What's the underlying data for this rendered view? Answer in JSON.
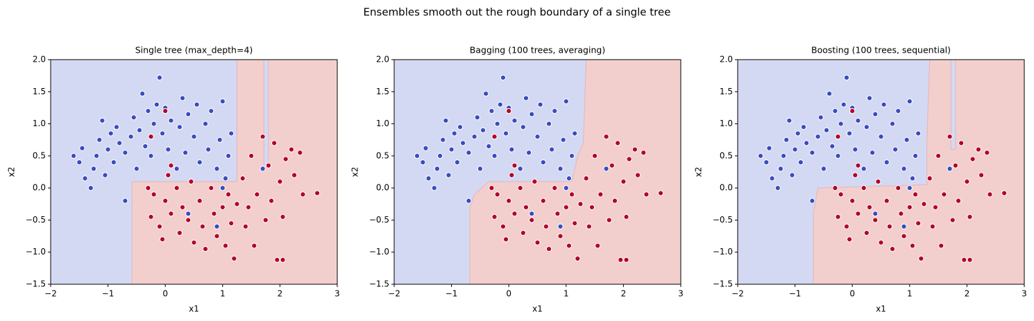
{
  "title": "Ensembles smooth out the rough boundary of a single tree",
  "chart_data": [
    {
      "type": "scatter",
      "title": "Single tree (max_depth=4)",
      "xlabel": "x1",
      "ylabel": "x2",
      "xlim": [
        -2,
        3
      ],
      "ylim": [
        -1.5,
        2.0
      ],
      "xticks": [
        {
          "value": -2,
          "label": "−2"
        },
        {
          "value": -1,
          "label": "−1"
        },
        0,
        1,
        2,
        3
      ],
      "yticks": [
        {
          "value": -1.5,
          "label": "−1.5"
        },
        {
          "value": -1.0,
          "label": "−1.0"
        },
        {
          "value": -0.5,
          "label": "−0.5"
        },
        {
          "value": 0.0,
          "label": "0.0"
        },
        {
          "value": 0.5,
          "label": "0.5"
        },
        {
          "value": 1.0,
          "label": "1.0"
        },
        {
          "value": 1.5,
          "label": "1.5"
        },
        {
          "value": 2.0,
          "label": "2.0"
        }
      ],
      "background": "#d4d9f3",
      "region": {
        "color": "#f2cfcd",
        "x": [
          -0.58,
          -0.58,
          1.25,
          1.25,
          1.72,
          1.72,
          1.8,
          1.8,
          3,
          3
        ],
        "y": [
          -1.5,
          0.1,
          0.1,
          2,
          2,
          0.32,
          0.32,
          2,
          2,
          -1.5
        ]
      },
      "series": [
        {
          "color": "#3a4cc0",
          "x": [
            -1.6,
            -1.5,
            -1.45,
            -1.4,
            -1.3,
            -1.25,
            -1.2,
            -1.15,
            -1.1,
            -1.05,
            -1.0,
            -0.95,
            -0.9,
            -0.85,
            -0.8,
            -0.7,
            -0.7,
            -0.6,
            -0.55,
            -0.5,
            -0.45,
            -0.4,
            -0.35,
            -0.3,
            -0.25,
            -0.2,
            -0.15,
            -0.1,
            -0.05,
            0.0,
            0.05,
            0.1,
            0.2,
            0.25,
            0.3,
            0.35,
            0.4,
            0.5,
            0.55,
            0.6,
            0.7,
            0.75,
            0.8,
            0.9,
            0.95,
            1.0,
            1.05,
            1.1,
            1.15,
            1.0,
            1.7,
            0.4,
            0.9
          ],
          "y": [
            0.5,
            0.4,
            0.62,
            0.15,
            0.0,
            0.3,
            0.5,
            0.75,
            1.05,
            0.2,
            0.6,
            0.85,
            0.4,
            0.95,
            0.7,
            -0.2,
            0.55,
            0.8,
            1.1,
            0.3,
            0.9,
            1.47,
            0.65,
            1.2,
            0.5,
            1.0,
            1.3,
            1.72,
            0.85,
            1.25,
            0.6,
            1.05,
            0.3,
            0.95,
            1.4,
            0.55,
            1.15,
            0.8,
            1.3,
            0.4,
            1.0,
            0.6,
            1.2,
            0.3,
            0.75,
            1.35,
            0.15,
            0.5,
            0.85,
            0.0,
            0.3,
            -0.4,
            -0.6
          ]
        },
        {
          "color": "#b40426",
          "x": [
            -0.3,
            -0.25,
            -0.2,
            -0.1,
            -0.05,
            0.0,
            0.05,
            0.1,
            0.2,
            0.25,
            0.3,
            0.4,
            0.45,
            0.5,
            0.6,
            0.65,
            0.7,
            0.8,
            0.85,
            0.9,
            1.0,
            1.05,
            1.1,
            1.15,
            1.2,
            1.25,
            1.35,
            1.4,
            1.45,
            1.5,
            1.55,
            1.6,
            1.7,
            1.75,
            1.8,
            1.85,
            1.9,
            2.0,
            2.05,
            2.1,
            2.2,
            2.25,
            2.35,
            2.4,
            2.65,
            1.95,
            2.05,
            0.0,
            -0.25,
            0.1
          ],
          "y": [
            0.0,
            -0.45,
            -0.1,
            -0.6,
            -0.8,
            -0.2,
            0.2,
            -0.4,
            0.0,
            -0.7,
            -0.3,
            -0.5,
            0.1,
            -0.85,
            -0.2,
            -0.6,
            -0.95,
            0.0,
            -0.4,
            -0.75,
            -0.3,
            -0.9,
            -0.1,
            -0.55,
            -1.1,
            -0.25,
            0.15,
            -0.6,
            -0.3,
            0.5,
            -0.9,
            -0.1,
            0.8,
            -0.5,
            0.35,
            -0.2,
            0.7,
            0.1,
            -0.45,
            0.45,
            0.6,
            0.2,
            0.55,
            -0.1,
            -0.08,
            -1.12,
            -1.12,
            1.2,
            0.8,
            0.35
          ]
        }
      ]
    },
    {
      "type": "scatter",
      "title": "Bagging (100 trees, averaging)",
      "xlabel": "x1",
      "ylabel": "x2",
      "xlim": [
        -2,
        3
      ],
      "ylim": [
        -1.5,
        2.0
      ],
      "xticks": [
        {
          "value": -2,
          "label": "−2"
        },
        {
          "value": -1,
          "label": "−1"
        },
        0,
        1,
        2,
        3
      ],
      "yticks": [
        {
          "value": -1.5,
          "label": "−1.5"
        },
        {
          "value": -1.0,
          "label": "−1.0"
        },
        {
          "value": -0.5,
          "label": "−0.5"
        },
        {
          "value": 0.0,
          "label": "0.0"
        },
        {
          "value": 0.5,
          "label": "0.5"
        },
        {
          "value": 1.0,
          "label": "1.0"
        },
        {
          "value": 1.5,
          "label": "1.5"
        },
        {
          "value": 2.0,
          "label": "2.0"
        }
      ],
      "background": "#d4d9f3",
      "region": {
        "color": "#f2cfcd",
        "x": [
          -0.68,
          -0.68,
          -0.6,
          -0.35,
          1.1,
          1.2,
          1.3,
          1.35,
          3,
          3
        ],
        "y": [
          -1.5,
          -0.3,
          -0.1,
          0.1,
          0.1,
          0.5,
          0.7,
          2,
          2,
          -1.5
        ]
      },
      "series": [
        {
          "color": "#3a4cc0",
          "x": [
            -1.6,
            -1.5,
            -1.45,
            -1.4,
            -1.3,
            -1.25,
            -1.2,
            -1.15,
            -1.1,
            -1.05,
            -1.0,
            -0.95,
            -0.9,
            -0.85,
            -0.8,
            -0.7,
            -0.7,
            -0.6,
            -0.55,
            -0.5,
            -0.45,
            -0.4,
            -0.35,
            -0.3,
            -0.25,
            -0.2,
            -0.15,
            -0.1,
            -0.05,
            0.0,
            0.05,
            0.1,
            0.2,
            0.25,
            0.3,
            0.35,
            0.4,
            0.5,
            0.55,
            0.6,
            0.7,
            0.75,
            0.8,
            0.9,
            0.95,
            1.0,
            1.05,
            1.1,
            1.15,
            1.0,
            1.7,
            0.4,
            0.9
          ],
          "y": [
            0.5,
            0.4,
            0.62,
            0.15,
            0.0,
            0.3,
            0.5,
            0.75,
            1.05,
            0.2,
            0.6,
            0.85,
            0.4,
            0.95,
            0.7,
            -0.2,
            0.55,
            0.8,
            1.1,
            0.3,
            0.9,
            1.47,
            0.65,
            1.2,
            0.5,
            1.0,
            1.3,
            1.72,
            0.85,
            1.25,
            0.6,
            1.05,
            0.3,
            0.95,
            1.4,
            0.55,
            1.15,
            0.8,
            1.3,
            0.4,
            1.0,
            0.6,
            1.2,
            0.3,
            0.75,
            1.35,
            0.15,
            0.5,
            0.85,
            0.0,
            0.3,
            -0.4,
            -0.6
          ]
        },
        {
          "color": "#b40426",
          "x": [
            -0.3,
            -0.25,
            -0.2,
            -0.1,
            -0.05,
            0.0,
            0.05,
            0.1,
            0.2,
            0.25,
            0.3,
            0.4,
            0.45,
            0.5,
            0.6,
            0.65,
            0.7,
            0.8,
            0.85,
            0.9,
            1.0,
            1.05,
            1.1,
            1.15,
            1.2,
            1.25,
            1.35,
            1.4,
            1.45,
            1.5,
            1.55,
            1.6,
            1.7,
            1.75,
            1.8,
            1.85,
            1.9,
            2.0,
            2.05,
            2.1,
            2.2,
            2.25,
            2.35,
            2.4,
            2.65,
            1.95,
            2.05,
            0.0,
            -0.25,
            0.1
          ],
          "y": [
            0.0,
            -0.45,
            -0.1,
            -0.6,
            -0.8,
            -0.2,
            0.2,
            -0.4,
            0.0,
            -0.7,
            -0.3,
            -0.5,
            0.1,
            -0.85,
            -0.2,
            -0.6,
            -0.95,
            0.0,
            -0.4,
            -0.75,
            -0.3,
            -0.9,
            -0.1,
            -0.55,
            -1.1,
            -0.25,
            0.15,
            -0.6,
            -0.3,
            0.5,
            -0.9,
            -0.1,
            0.8,
            -0.5,
            0.35,
            -0.2,
            0.7,
            0.1,
            -0.45,
            0.45,
            0.6,
            0.2,
            0.55,
            -0.1,
            -0.08,
            -1.12,
            -1.12,
            1.2,
            0.8,
            0.35
          ]
        }
      ]
    },
    {
      "type": "scatter",
      "title": "Boosting (100 trees, sequential)",
      "xlabel": "x1",
      "ylabel": "x2",
      "xlim": [
        -2,
        3
      ],
      "ylim": [
        -1.5,
        2.0
      ],
      "xticks": [
        {
          "value": -2,
          "label": "−2"
        },
        {
          "value": -1,
          "label": "−1"
        },
        0,
        1,
        2,
        3
      ],
      "yticks": [
        {
          "value": -1.5,
          "label": "−1.5"
        },
        {
          "value": -1.0,
          "label": "−1.0"
        },
        {
          "value": -0.5,
          "label": "−0.5"
        },
        {
          "value": 0.0,
          "label": "0.0"
        },
        {
          "value": 0.5,
          "label": "0.5"
        },
        {
          "value": 1.0,
          "label": "1.0"
        },
        {
          "value": 1.5,
          "label": "1.5"
        },
        {
          "value": 2.0,
          "label": "2.0"
        }
      ],
      "background": "#d4d9f3",
      "region": {
        "color": "#f2cfcd",
        "x": [
          -0.68,
          -0.68,
          -0.6,
          1.3,
          1.3,
          1.35,
          1.72,
          1.72,
          1.8,
          1.8,
          3,
          3
        ],
        "y": [
          -1.5,
          -0.4,
          0.0,
          0.05,
          0.7,
          2,
          2,
          0.6,
          0.6,
          2,
          2,
          -1.5
        ]
      },
      "series": [
        {
          "color": "#3a4cc0",
          "x": [
            -1.6,
            -1.5,
            -1.45,
            -1.4,
            -1.3,
            -1.25,
            -1.2,
            -1.15,
            -1.1,
            -1.05,
            -1.0,
            -0.95,
            -0.9,
            -0.85,
            -0.8,
            -0.7,
            -0.7,
            -0.6,
            -0.55,
            -0.5,
            -0.45,
            -0.4,
            -0.35,
            -0.3,
            -0.25,
            -0.2,
            -0.15,
            -0.1,
            -0.05,
            0.0,
            0.05,
            0.1,
            0.2,
            0.25,
            0.3,
            0.35,
            0.4,
            0.5,
            0.55,
            0.6,
            0.7,
            0.75,
            0.8,
            0.9,
            0.95,
            1.0,
            1.05,
            1.1,
            1.15,
            1.0,
            1.7,
            0.4,
            0.9
          ],
          "y": [
            0.5,
            0.4,
            0.62,
            0.15,
            0.0,
            0.3,
            0.5,
            0.75,
            1.05,
            0.2,
            0.6,
            0.85,
            0.4,
            0.95,
            0.7,
            -0.2,
            0.55,
            0.8,
            1.1,
            0.3,
            0.9,
            1.47,
            0.65,
            1.2,
            0.5,
            1.0,
            1.3,
            1.72,
            0.85,
            1.25,
            0.6,
            1.05,
            0.3,
            0.95,
            1.4,
            0.55,
            1.15,
            0.8,
            1.3,
            0.4,
            1.0,
            0.6,
            1.2,
            0.3,
            0.75,
            1.35,
            0.15,
            0.5,
            0.85,
            0.0,
            0.3,
            -0.4,
            -0.6
          ]
        },
        {
          "color": "#b40426",
          "x": [
            -0.3,
            -0.25,
            -0.2,
            -0.1,
            -0.05,
            0.0,
            0.05,
            0.1,
            0.2,
            0.25,
            0.3,
            0.4,
            0.45,
            0.5,
            0.6,
            0.65,
            0.7,
            0.8,
            0.85,
            0.9,
            1.0,
            1.05,
            1.1,
            1.15,
            1.2,
            1.25,
            1.35,
            1.4,
            1.45,
            1.5,
            1.55,
            1.6,
            1.7,
            1.75,
            1.8,
            1.85,
            1.9,
            2.0,
            2.05,
            2.1,
            2.2,
            2.25,
            2.35,
            2.4,
            2.65,
            1.95,
            2.05,
            0.0,
            -0.25,
            0.1
          ],
          "y": [
            0.0,
            -0.45,
            -0.1,
            -0.6,
            -0.8,
            -0.2,
            0.2,
            -0.4,
            0.0,
            -0.7,
            -0.3,
            -0.5,
            0.1,
            -0.85,
            -0.2,
            -0.6,
            -0.95,
            0.0,
            -0.4,
            -0.75,
            -0.3,
            -0.9,
            -0.1,
            -0.55,
            -1.1,
            -0.25,
            0.15,
            -0.6,
            -0.3,
            0.5,
            -0.9,
            -0.1,
            0.8,
            -0.5,
            0.35,
            -0.2,
            0.7,
            0.1,
            -0.45,
            0.45,
            0.6,
            0.2,
            0.55,
            -0.1,
            -0.08,
            -1.12,
            -1.12,
            1.2,
            0.8,
            0.35
          ]
        }
      ]
    }
  ]
}
